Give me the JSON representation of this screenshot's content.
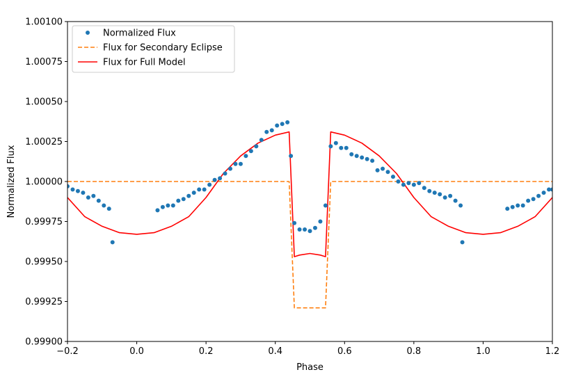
{
  "chart_data": {
    "type": "line",
    "title": "",
    "xlabel": "Phase",
    "ylabel": "Normalized Flux",
    "xlim": [
      -0.2,
      1.2
    ],
    "ylim": [
      0.999,
      1.001
    ],
    "xticks": [
      -0.2,
      0.0,
      0.2,
      0.4,
      0.6,
      0.8,
      1.0,
      1.2
    ],
    "xtick_labels": [
      "−0.2",
      "0.0",
      "0.2",
      "0.4",
      "0.6",
      "0.8",
      "1.0",
      "1.2"
    ],
    "yticks": [
      0.999,
      0.99925,
      0.9995,
      0.99975,
      1.0,
      1.00025,
      1.0005,
      1.00075,
      1.001
    ],
    "ytick_labels": [
      "0.99900",
      "0.99925",
      "0.99950",
      "0.99975",
      "1.00000",
      "1.00025",
      "1.00050",
      "1.00075",
      "1.00100"
    ],
    "grid": false,
    "legend_position": "top-left",
    "series": [
      {
        "name": "Normalized Flux",
        "style": "points",
        "color": "#1f77b4",
        "x": [
          -0.2,
          -0.185,
          -0.17,
          -0.155,
          -0.14,
          -0.125,
          -0.11,
          -0.095,
          -0.08,
          -0.07,
          0.06,
          0.075,
          0.09,
          0.105,
          0.12,
          0.135,
          0.15,
          0.165,
          0.18,
          0.195,
          0.21,
          0.225,
          0.24,
          0.255,
          0.27,
          0.285,
          0.3,
          0.315,
          0.33,
          0.345,
          0.36,
          0.375,
          0.39,
          0.405,
          0.42,
          0.435,
          0.445,
          0.455,
          0.47,
          0.485,
          0.5,
          0.515,
          0.53,
          0.545,
          0.56,
          0.575,
          0.59,
          0.605,
          0.62,
          0.635,
          0.65,
          0.665,
          0.68,
          0.695,
          0.71,
          0.725,
          0.74,
          0.755,
          0.77,
          0.785,
          0.8,
          0.815,
          0.83,
          0.845,
          0.86,
          0.875,
          0.89,
          0.905,
          0.92,
          0.935,
          0.94,
          1.07,
          1.085,
          1.1,
          1.115,
          1.13,
          1.145,
          1.16,
          1.175,
          1.19,
          1.2
        ],
        "y": [
          0.99997,
          0.99995,
          0.99994,
          0.99993,
          0.9999,
          0.99991,
          0.99988,
          0.99985,
          0.99983,
          0.99962,
          0.99982,
          0.99984,
          0.99985,
          0.99985,
          0.99988,
          0.99989,
          0.99991,
          0.99993,
          0.99995,
          0.99995,
          0.99998,
          1.00001,
          1.00002,
          1.00005,
          1.00008,
          1.00011,
          1.00011,
          1.00016,
          1.00019,
          1.00022,
          1.00026,
          1.00031,
          1.00032,
          1.00035,
          1.00036,
          1.00037,
          1.00016,
          0.99974,
          0.9997,
          0.9997,
          0.99969,
          0.99971,
          0.99975,
          0.99985,
          1.00022,
          1.00024,
          1.00021,
          1.00021,
          1.00017,
          1.00016,
          1.00015,
          1.00014,
          1.00013,
          1.00007,
          1.00008,
          1.00006,
          1.00003,
          1.0,
          0.99998,
          0.99999,
          0.99998,
          0.99999,
          0.99996,
          0.99994,
          0.99993,
          0.99992,
          0.9999,
          0.99991,
          0.99988,
          0.99985,
          0.99962,
          0.99983,
          0.99984,
          0.99985,
          0.99985,
          0.99988,
          0.99989,
          0.99991,
          0.99993,
          0.99995,
          0.99995
        ]
      },
      {
        "name": "Flux for Secondary Eclipse",
        "style": "dashed",
        "color": "#ff7f0e",
        "x": [
          -0.2,
          0.44,
          0.455,
          0.545,
          0.56,
          1.2
        ],
        "y": [
          1.0,
          1.0,
          0.99921,
          0.99921,
          1.0,
          1.0
        ]
      },
      {
        "name": "Flux for Full Model",
        "style": "solid",
        "color": "#ff0000",
        "x": [
          -0.2,
          -0.15,
          -0.1,
          -0.05,
          0.0,
          0.05,
          0.1,
          0.15,
          0.2,
          0.25,
          0.3,
          0.35,
          0.4,
          0.44,
          0.455,
          0.47,
          0.5,
          0.53,
          0.545,
          0.56,
          0.6,
          0.65,
          0.7,
          0.75,
          0.8,
          0.85,
          0.9,
          0.95,
          1.0,
          1.05,
          1.1,
          1.15,
          1.2
        ],
        "y": [
          0.9999,
          0.99978,
          0.99972,
          0.99968,
          0.99967,
          0.99968,
          0.99972,
          0.99978,
          0.9999,
          1.00005,
          1.00016,
          1.00024,
          1.00029,
          1.00031,
          0.99953,
          0.99954,
          0.99955,
          0.99954,
          0.99953,
          1.00031,
          1.00029,
          1.00024,
          1.00016,
          1.00005,
          0.9999,
          0.99978,
          0.99972,
          0.99968,
          0.99967,
          0.99968,
          0.99972,
          0.99978,
          0.9999
        ]
      }
    ]
  }
}
